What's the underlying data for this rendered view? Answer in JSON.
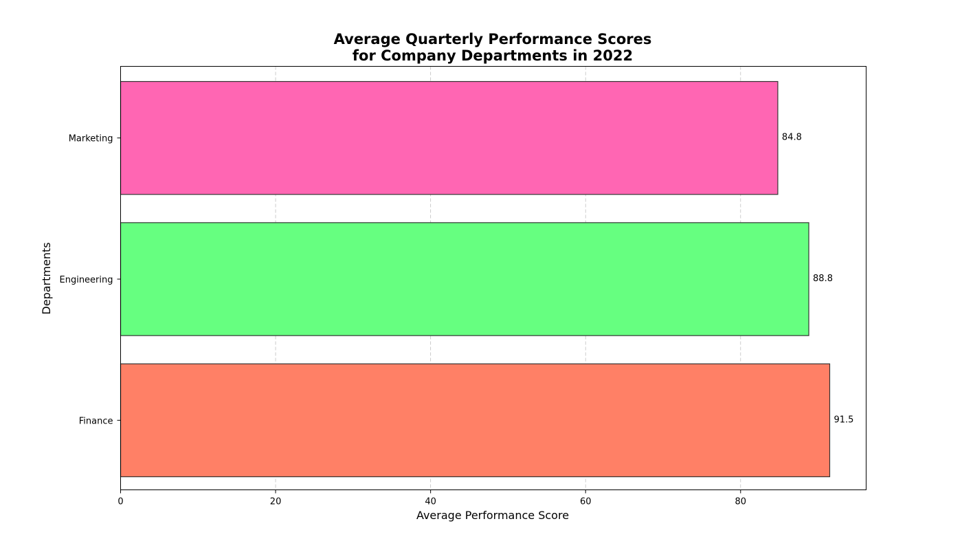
{
  "chart_data": {
    "type": "bar",
    "orientation": "horizontal",
    "title_lines": [
      "Average Quarterly Performance Scores",
      "for Company Departments in 2022"
    ],
    "xlabel": "Average Performance Score",
    "ylabel": "Departments",
    "categories": [
      "Finance",
      "Engineering",
      "Marketing"
    ],
    "values": [
      91.5,
      88.8,
      84.8
    ],
    "value_labels": [
      "91.5",
      "88.8",
      "84.8"
    ],
    "colors": [
      "#FF8066",
      "#66FF80",
      "#FF66B3"
    ],
    "edge_color": "#333333",
    "xlim": [
      0,
      96.2
    ],
    "xticks": [
      0,
      20,
      40,
      60,
      80
    ],
    "xtick_labels": [
      "0",
      "20",
      "40",
      "60",
      "80"
    ],
    "grid": "x-dashed"
  }
}
